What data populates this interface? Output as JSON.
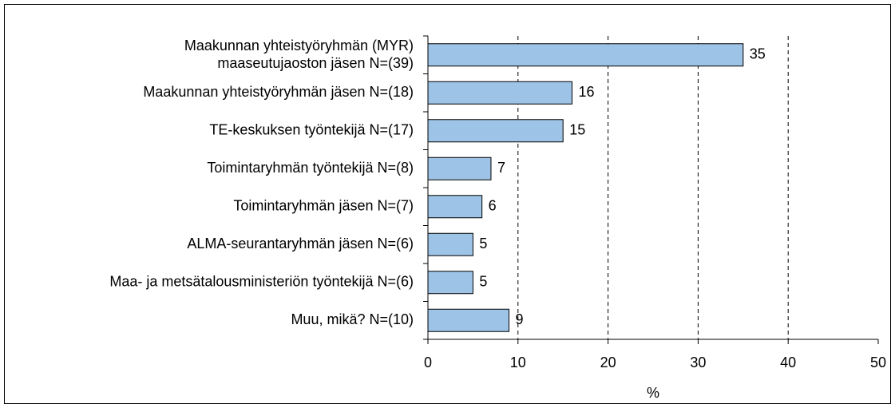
{
  "chart_data": {
    "type": "bar",
    "orientation": "horizontal",
    "categories": [
      "Maakunnan yhteistyöryhmän (MYR)\nmaaseutujaoston jäsen N=(39)",
      "Maakunnan yhteistyöryhmän jäsen N=(18)",
      "TE-keskuksen työntekijä N=(17)",
      "Toimintaryhmän työntekijä N=(8)",
      "Toimintaryhmän jäsen N=(7)",
      "ALMA-seurantaryhmän jäsen N=(6)",
      "Maa- ja metsätalousministeriön työntekijä N=(6)",
      "Muu, mikä? N=(10)"
    ],
    "values": [
      35,
      16,
      15,
      7,
      6,
      5,
      5,
      9
    ],
    "color": "#9dc3e6",
    "xlabel": "%",
    "xlim": [
      0,
      50
    ],
    "xticks": [
      0,
      10,
      20,
      30,
      40,
      50
    ],
    "grid": true
  }
}
